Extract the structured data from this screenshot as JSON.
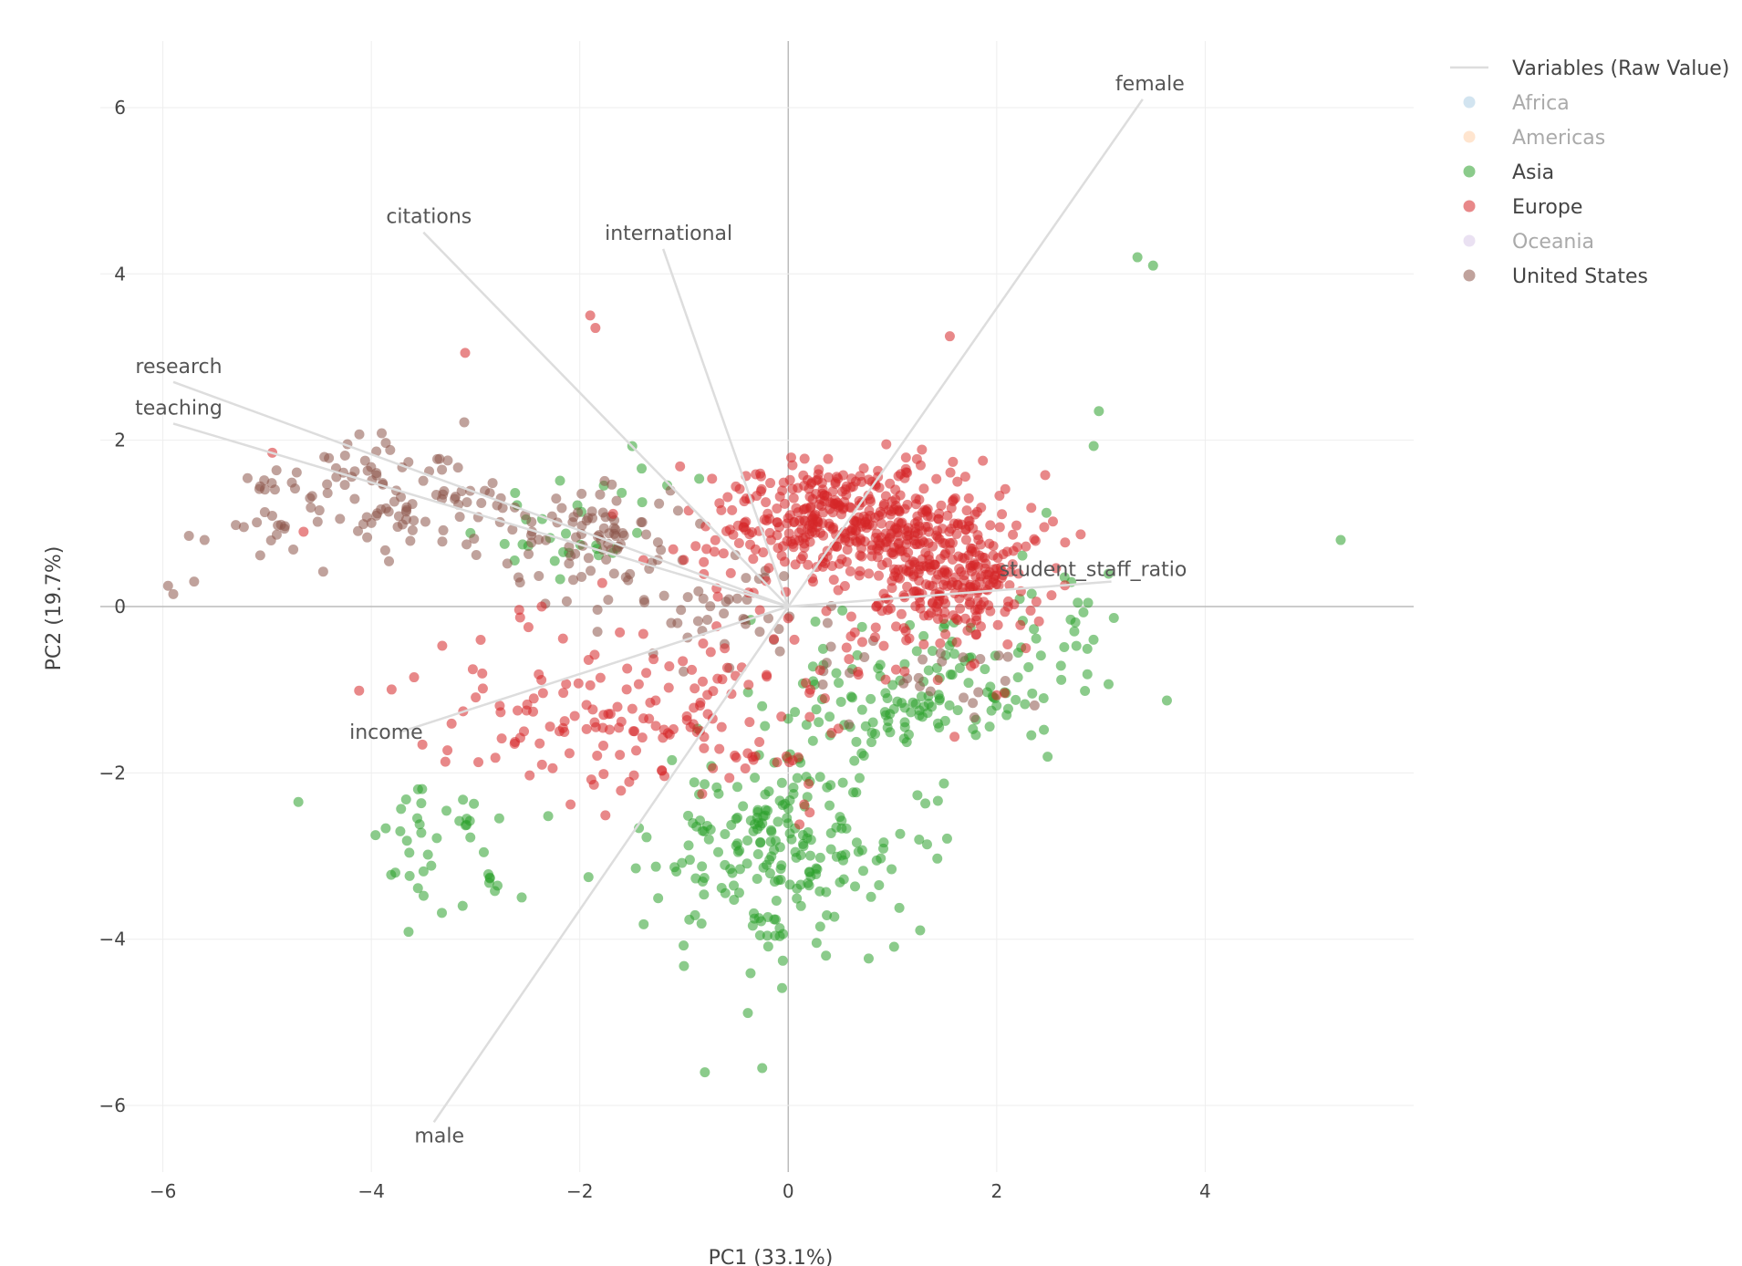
{
  "chart_data": {
    "type": "scatter",
    "xlabel": "PC1 (33.1%)",
    "ylabel": "PC2 (19.7%)",
    "xlim": [
      -6.6,
      6.0
    ],
    "ylim": [
      -6.8,
      6.8
    ],
    "xticks": [
      -6,
      -4,
      -2,
      0,
      2,
      4
    ],
    "yticks": [
      -6,
      -4,
      -2,
      0,
      2,
      4,
      6
    ],
    "xtick_labels": [
      "−6",
      "−4",
      "−2",
      "0",
      "2",
      "4"
    ],
    "ytick_labels": [
      "−6",
      "−4",
      "−2",
      "0",
      "2",
      "4",
      "6"
    ],
    "grid": true,
    "legend_position": "top-right",
    "legend_line_label": "Variables (Raw Value)",
    "vector_color": "#dddddd",
    "vectors": [
      {
        "name": "female",
        "x": 3.4,
        "y": 6.1
      },
      {
        "name": "citations",
        "x": -3.5,
        "y": 4.5
      },
      {
        "name": "international",
        "x": -1.2,
        "y": 4.3
      },
      {
        "name": "research",
        "x": -5.9,
        "y": 2.7
      },
      {
        "name": "teaching",
        "x": -5.9,
        "y": 2.2
      },
      {
        "name": "student_staff_ratio",
        "x": 3.1,
        "y": 0.3
      },
      {
        "name": "income",
        "x": -3.7,
        "y": -1.5
      },
      {
        "name": "male",
        "x": -3.4,
        "y": -6.2
      }
    ],
    "series": [
      {
        "name": "Africa",
        "color": "#1f77b4",
        "visible": false,
        "n": 0,
        "cx": [
          0
        ],
        "cy": [
          0
        ],
        "sx": [
          1
        ],
        "sy": [
          1
        ],
        "w": [
          1
        ],
        "seed": 11
      },
      {
        "name": "Americas",
        "color": "#ff7f0e",
        "visible": false,
        "n": 0,
        "cx": [
          0
        ],
        "cy": [
          0
        ],
        "sx": [
          1
        ],
        "sy": [
          1
        ],
        "w": [
          1
        ],
        "seed": 12
      },
      {
        "name": "Asia",
        "color": "#2ca02c",
        "visible": true,
        "n": 460,
        "cx": [
          -0.1,
          1.2,
          -3.3,
          -2.0,
          2.6
        ],
        "cy": [
          -2.9,
          -1.1,
          -2.9,
          0.9,
          -0.3
        ],
        "sx": [
          1.1,
          1.0,
          0.7,
          0.8,
          0.5
        ],
        "sy": [
          1.1,
          0.9,
          0.7,
          0.6,
          0.9
        ],
        "w": [
          0.45,
          0.3,
          0.1,
          0.08,
          0.07
        ],
        "seed": 7,
        "extra_x": [
          3.35,
          3.5,
          5.3,
          2.98,
          2.93,
          -0.8,
          -0.25,
          -4.7
        ],
        "extra_y": [
          4.2,
          4.1,
          0.8,
          2.35,
          1.93,
          -5.6,
          -5.55,
          -2.35
        ]
      },
      {
        "name": "Europe",
        "color": "#d62728",
        "visible": true,
        "n": 860,
        "cx": [
          0.6,
          1.6,
          -1.0,
          -2.5,
          -0.2,
          0.9
        ],
        "cy": [
          1.1,
          0.4,
          -1.5,
          -1.2,
          0.9,
          -0.5
        ],
        "sx": [
          1.0,
          0.8,
          1.2,
          1.2,
          0.9,
          1.2
        ],
        "sy": [
          0.6,
          0.7,
          0.9,
          0.8,
          0.7,
          0.9
        ],
        "w": [
          0.4,
          0.28,
          0.12,
          0.06,
          0.08,
          0.06
        ],
        "seed": 3,
        "extra_x": [
          1.55,
          -1.9,
          -1.85,
          -3.1,
          -4.65,
          -4.95
        ],
        "extra_y": [
          3.25,
          3.5,
          3.35,
          3.05,
          0.9,
          1.85
        ]
      },
      {
        "name": "Oceania",
        "color": "#9467bd",
        "visible": false,
        "n": 0,
        "cx": [
          0
        ],
        "cy": [
          0
        ],
        "sx": [
          1
        ],
        "sy": [
          1
        ],
        "w": [
          1
        ],
        "seed": 13
      },
      {
        "name": "United States",
        "color": "#8c564b",
        "visible": true,
        "n": 270,
        "cx": [
          -3.8,
          -1.9,
          -0.4,
          0.9,
          -4.9
        ],
        "cy": [
          1.3,
          0.8,
          0.0,
          -0.9,
          1.2
        ],
        "sx": [
          1.1,
          0.8,
          0.7,
          1.1,
          0.4
        ],
        "sy": [
          0.6,
          0.6,
          0.6,
          0.5,
          0.5
        ],
        "w": [
          0.35,
          0.3,
          0.15,
          0.12,
          0.08
        ],
        "seed": 5,
        "extra_x": [
          -5.95,
          -5.9,
          -5.7,
          -5.75,
          -5.6,
          -5.3
        ],
        "extra_y": [
          0.25,
          0.15,
          0.3,
          0.85,
          0.8,
          0.98
        ]
      }
    ]
  }
}
